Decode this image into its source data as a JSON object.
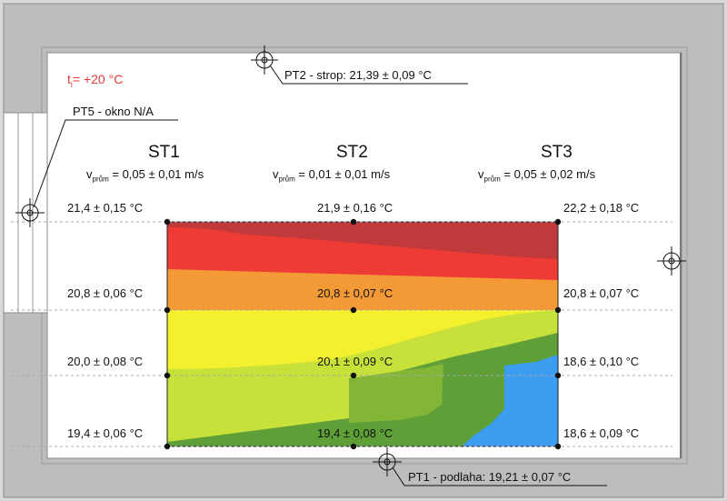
{
  "room": {
    "ti_base": "t",
    "ti_sub": "i",
    "ti_value": "= +20 °C",
    "pt5_label": "PT5 - okno N/A",
    "pt2_label": "PT2 - strop: 21,39 ± 0,09 °C",
    "pt1_label": "PT1 - podlaha: 19,21 ± 0,07 °C"
  },
  "columns": [
    {
      "name": "ST1",
      "v_prefix": "v",
      "v_sub": "prům",
      "v_value": "= 0,05 ± 0,01 m/s"
    },
    {
      "name": "ST2",
      "v_prefix": "v",
      "v_sub": "prům",
      "v_value": "= 0,01 ± 0,01 m/s"
    },
    {
      "name": "ST3",
      "v_prefix": "v",
      "v_sub": "prům",
      "v_value": "= 0,05 ± 0,02 m/s"
    }
  ],
  "readings": {
    "st1": [
      "21,4 ± 0,15 °C",
      "20,8 ± 0,06 °C",
      "20,0 ± 0,08 °C",
      "19,4 ± 0,06 °C"
    ],
    "st2": [
      "21,9 ± 0,16 °C",
      "20,8 ± 0,07 °C",
      "20,1 ± 0,09 °C",
      "19,4 ± 0,08 °C"
    ],
    "st3": [
      "22,2 ± 0,18 °C",
      "20,8 ± 0,07 °C",
      "18,6 ± 0,10 °C",
      "18,6 ± 0,09 °C"
    ]
  },
  "colors": {
    "dark_red": "#c0393b",
    "red": "#ef3b36",
    "orange": "#f39a36",
    "yellow": "#f3f02e",
    "yellow_green": "#c8e03a",
    "green": "#5e9f37",
    "blue": "#3d9df0",
    "wall": "#bdbdbd",
    "ti_red": "#e53935"
  }
}
